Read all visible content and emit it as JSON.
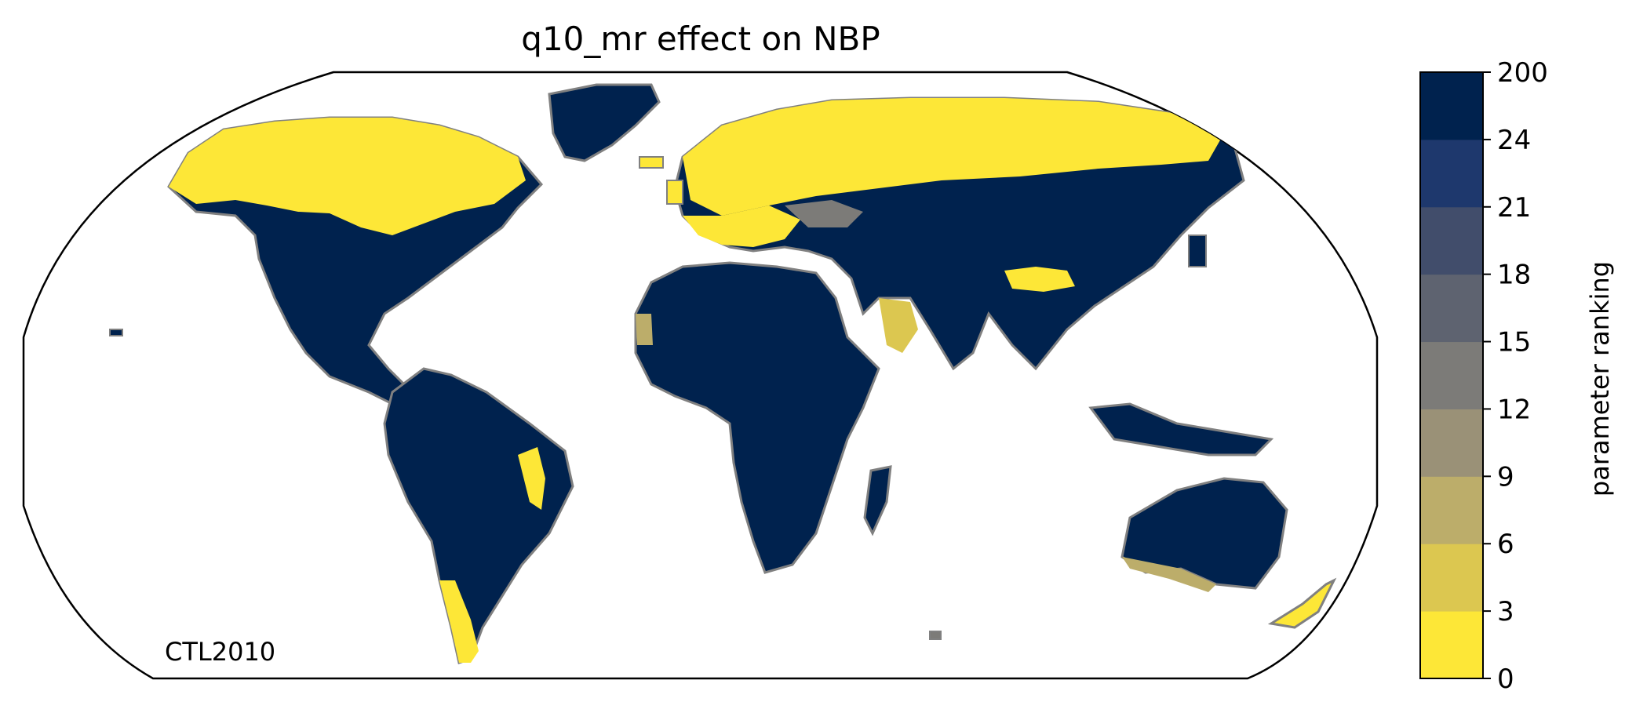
{
  "title": "q10_mr effect on NBP",
  "map_label": "CTL2010",
  "colorbar": {
    "label": "parameter ranking",
    "ticks": [
      "0",
      "3",
      "6",
      "9",
      "12",
      "15",
      "18",
      "21",
      "24",
      "200"
    ],
    "colors": [
      "#fde737",
      "#dcc750",
      "#bcad6a",
      "#9a9177",
      "#7c7b78",
      "#5e6370",
      "#414d6b",
      "#1e386d",
      "#00224e"
    ]
  },
  "chart_data": {
    "type": "heatmap",
    "title": "q10_mr effect on NBP",
    "projection": "Robinson (global)",
    "annotation": "CTL2010",
    "colorbar_label": "parameter ranking",
    "colorbar_bounds": [
      0,
      3,
      6,
      9,
      12,
      15,
      18,
      21,
      24,
      200
    ],
    "land_color": "#00224e",
    "coastline_color": "#808080",
    "dominant_pattern": [
      {
        "region": "Northern North America / Canada / Alaska",
        "ranking": "0-3"
      },
      {
        "region": "Northern Europe and Siberia (boreal belt)",
        "ranking": "0-3"
      },
      {
        "region": "Mediterranean / Southern Europe",
        "ranking": "0-3"
      },
      {
        "region": "Greenland",
        "ranking": "24-200"
      },
      {
        "region": "Central & South America",
        "ranking": "24-200"
      },
      {
        "region": "Africa",
        "ranking": "24-200"
      },
      {
        "region": "Middle East, South & Central Asia",
        "ranking": "24-200"
      },
      {
        "region": "China / East Asia",
        "ranking": "24-200"
      },
      {
        "region": "Australia",
        "ranking": "24-200"
      },
      {
        "region": "Patagonia, eastern Brazil, New Zealand (patches)",
        "ranking": "0-6"
      }
    ]
  }
}
